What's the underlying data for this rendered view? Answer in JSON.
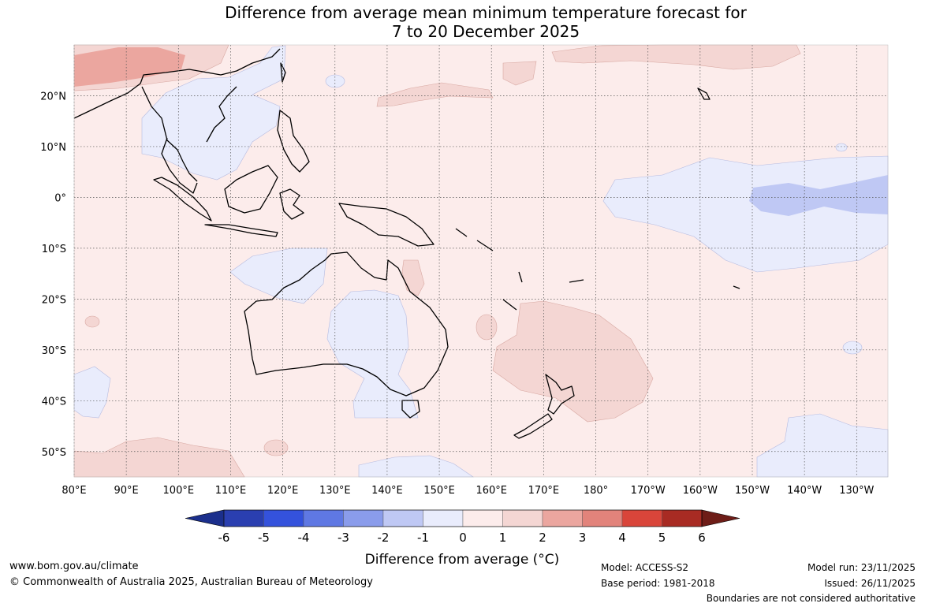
{
  "title": {
    "line1": "Difference from average mean minimum temperature forecast for",
    "line2": "7 to 20 December 2025"
  },
  "map": {
    "lon_labels": [
      "80°E",
      "90°E",
      "100°E",
      "110°E",
      "120°E",
      "130°E",
      "140°E",
      "150°E",
      "160°E",
      "170°E",
      "180°",
      "170°W",
      "160°W",
      "150°W",
      "140°W",
      "130°W"
    ],
    "lat_labels": [
      "20°N",
      "10°N",
      "0°",
      "10°S",
      "20°S",
      "30°S",
      "40°S",
      "50°S"
    ],
    "lon_range": [
      80,
      236
    ],
    "lat_range": [
      -55,
      30
    ]
  },
  "colorbar": {
    "title": "Difference from average (°C)",
    "ticks": [
      "-6",
      "-5",
      "-4",
      "-3",
      "-2",
      "-1",
      "0",
      "1",
      "2",
      "3",
      "4",
      "5",
      "6"
    ],
    "colors": [
      "#1b2f8c",
      "#2a3fb0",
      "#3452dc",
      "#5f78e3",
      "#8a9ceb",
      "#bfc8f4",
      "#e9ecfc",
      "#fceceb",
      "#f4d6d3",
      "#eba69f",
      "#e2837b",
      "#d9453a",
      "#a82b23",
      "#6e1d18"
    ]
  },
  "footer": {
    "website": "www.bom.gov.au/climate",
    "copyright": "© Commonwealth of Australia 2025, Australian Bureau of Meteorology",
    "model": "Model: ACCESS-S2",
    "base_period": "Base period: 1981-2018",
    "model_run": "Model run: 23/11/2025",
    "issued": "Issued: 26/11/2025",
    "disclaimer": "Boundaries are not considered authoritative"
  }
}
